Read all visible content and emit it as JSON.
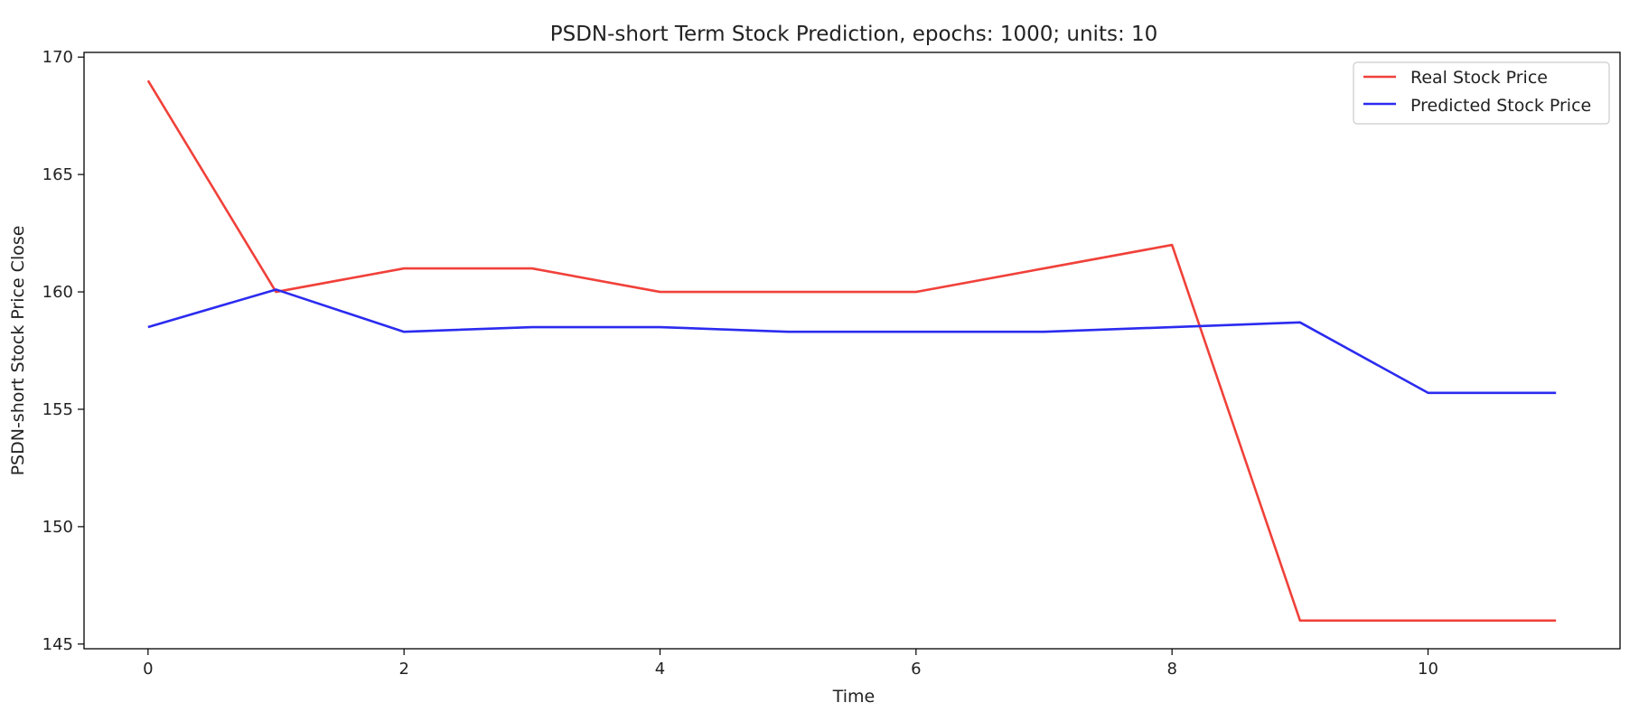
{
  "chart_data": {
    "type": "line",
    "title": "PSDN-short Term Stock Prediction, epochs: 1000; units: 10",
    "xlabel": "Time",
    "ylabel": "PSDN-short Stock Price Close",
    "xlim": [
      -0.5,
      11.5
    ],
    "ylim": [
      144.8,
      170.2
    ],
    "xticks": [
      0,
      2,
      4,
      6,
      8,
      10
    ],
    "yticks": [
      145,
      150,
      155,
      160,
      165,
      170
    ],
    "grid": false,
    "legend_position": "top-right",
    "x": [
      0,
      1,
      2,
      3,
      4,
      5,
      6,
      7,
      8,
      9,
      10,
      11
    ],
    "series": [
      {
        "name": "Real Stock Price",
        "color": "#f0413a",
        "values": [
          169,
          160,
          161,
          161,
          160,
          160,
          160,
          161,
          162,
          146,
          146,
          146
        ]
      },
      {
        "name": "Predicted Stock Price",
        "color": "#2b2bf0",
        "values": [
          158.5,
          160.1,
          158.3,
          158.5,
          158.5,
          158.3,
          158.3,
          158.3,
          158.5,
          158.7,
          155.7,
          155.7
        ]
      }
    ]
  }
}
